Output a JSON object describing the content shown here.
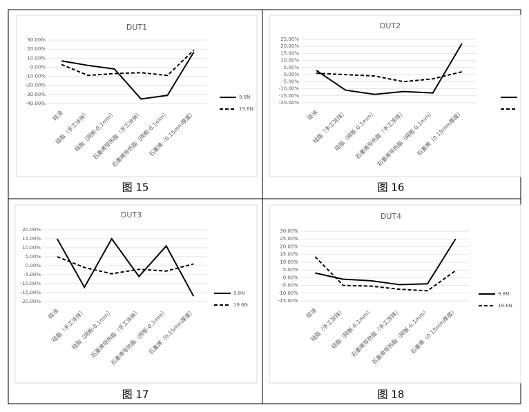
{
  "chart_data": [
    {
      "type": "line",
      "title": "DUT1",
      "caption": "图 15",
      "categories": [
        "硅油",
        "硅脂（手工涂抹）",
        "硅脂（网板-0.1mm）",
        "石墨烯导热脂（手工涂抹）",
        "石墨烯导热脂（网板-0.1mm）",
        "石墨烯（0.15mm厚度）"
      ],
      "series": [
        {
          "name": "9.8N",
          "color": "#000000",
          "line_style": "solid",
          "values": [
            7,
            2,
            -2,
            -35,
            -31,
            17
          ]
        },
        {
          "name": "19.6N",
          "color": "#000000",
          "line_style": "dashed",
          "values": [
            3,
            -9,
            -7,
            -6,
            -9,
            19
          ]
        }
      ],
      "ylim": [
        -40,
        30
      ],
      "yticks": [
        {
          "value": -40,
          "label": "-40.00%"
        },
        {
          "value": -30,
          "label": "-30.00%"
        },
        {
          "value": -20,
          "label": "-20.00%"
        },
        {
          "value": -10,
          "label": "-10.00%"
        },
        {
          "value": 0,
          "label": "0.00%"
        },
        {
          "value": 10,
          "label": "10.00%"
        },
        {
          "value": 20,
          "label": "20.00%"
        },
        {
          "value": 30,
          "label": "30.00%"
        }
      ],
      "grid": true
    },
    {
      "type": "line",
      "title": "DUT2",
      "caption": "图 16",
      "categories": [
        "硅油",
        "硅脂（手工涂抹）",
        "硅脂（网板-0.1mm）",
        "石墨烯导热脂（手工涂抹）",
        "石墨烯导热脂（网板-0.1mm）",
        "石墨烯（0.15mm厚度）"
      ],
      "series": [
        {
          "color": "#000000",
          "line_style": "solid",
          "values": [
            3,
            -11,
            -14,
            -12,
            -13,
            22
          ]
        },
        {
          "color": "#000000",
          "line_style": "dashed",
          "values": [
            1,
            0,
            -1,
            -5,
            -3,
            2
          ]
        }
      ],
      "ylim": [
        -20,
        25
      ],
      "yticks": [
        {
          "value": -20,
          "label": "-20.00%"
        },
        {
          "value": -15,
          "label": "-15.00%"
        },
        {
          "value": -10,
          "label": "-10.00%"
        },
        {
          "value": -5,
          "label": "-5.00%"
        },
        {
          "value": 0,
          "label": "0.00%"
        },
        {
          "value": 5,
          "label": "5.00%"
        },
        {
          "value": 10,
          "label": "10.00%"
        },
        {
          "value": 15,
          "label": "15.00%"
        },
        {
          "value": 20,
          "label": "20.00%"
        },
        {
          "value": 25,
          "label": "25.00%"
        }
      ],
      "grid": true
    },
    {
      "type": "line",
      "title": "DUT3",
      "caption": "图 17",
      "categories": [
        "硅油",
        "硅脂（手工涂抹）",
        "硅脂（网板-0.1mm）",
        "石墨烯导热脂（手工涂抹）",
        "石墨烯导热脂（网板-0.1mm）",
        "石墨烯（0.15mm厚度）"
      ],
      "series": [
        {
          "name": "9.8N",
          "color": "#000000",
          "line_style": "solid",
          "values": [
            15,
            -12,
            15,
            -6,
            11,
            -17
          ]
        },
        {
          "name": "19.6N",
          "color": "#000000",
          "line_style": "dashed",
          "values": [
            5,
            -1,
            -4.5,
            -2,
            -3,
            1
          ]
        }
      ],
      "ylim": [
        -20,
        20
      ],
      "yticks": [
        {
          "value": -20,
          "label": "-20.00%"
        },
        {
          "value": -15,
          "label": "-15.00%"
        },
        {
          "value": -10,
          "label": "-10.00%"
        },
        {
          "value": -5,
          "label": "-5.00%"
        },
        {
          "value": 0,
          "label": "0.00%"
        },
        {
          "value": 5,
          "label": "5.00%"
        },
        {
          "value": 10,
          "label": "10.00%"
        },
        {
          "value": 15,
          "label": "15.00%"
        },
        {
          "value": 20,
          "label": "20.00%"
        }
      ],
      "grid": true
    },
    {
      "type": "line",
      "title": "DUT4",
      "caption": "图 18",
      "categories": [
        "硅油",
        "硅脂（手工涂抹）",
        "硅脂（网板-0.1mm）",
        "石墨烯导热脂（手工涂抹）",
        "石墨烯导热脂（网板-0.1mm）",
        "石墨烯（0.15mm厚度）"
      ],
      "series": [
        {
          "name": "9.8N",
          "color": "#000000",
          "line_style": "solid",
          "values": [
            3,
            -1,
            -2,
            -4.5,
            -4,
            25
          ]
        },
        {
          "name": "19.6N",
          "color": "#000000",
          "line_style": "dashed",
          "values": [
            13.5,
            -5,
            -5.5,
            -7.5,
            -8.5,
            4.5
          ]
        }
      ],
      "ylim": [
        -15,
        30
      ],
      "yticks": [
        {
          "value": -15,
          "label": "-15.00%"
        },
        {
          "value": -10,
          "label": "-10.00%"
        },
        {
          "value": -5,
          "label": "-5.00%"
        },
        {
          "value": 0,
          "label": "0.00%"
        },
        {
          "value": 5,
          "label": "5.00%"
        },
        {
          "value": 10,
          "label": "10.00%"
        },
        {
          "value": 15,
          "label": "15.00%"
        },
        {
          "value": 20,
          "label": "20.00%"
        },
        {
          "value": 25,
          "label": "25.00%"
        },
        {
          "value": 30,
          "label": "30.00%"
        }
      ],
      "grid": true
    }
  ]
}
